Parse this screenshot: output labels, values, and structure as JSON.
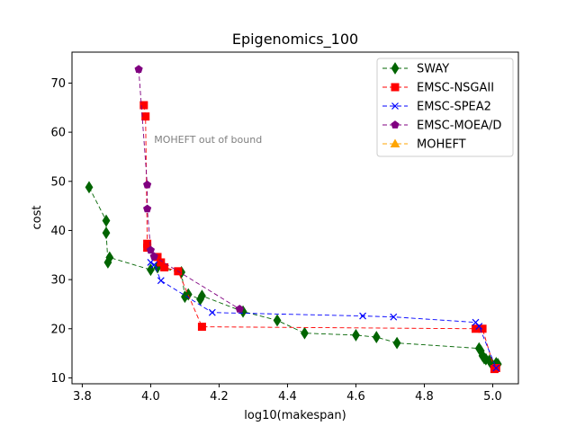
{
  "chart_data": {
    "type": "line",
    "title": "Epigenomics_100",
    "xlabel": "log10(makespan)",
    "ylabel": "cost",
    "xlim": [
      3.77,
      5.075
    ],
    "ylim": [
      8.8,
      76.3
    ],
    "xticks": [
      3.8,
      4.0,
      4.2,
      4.4,
      4.6,
      4.8,
      5.0
    ],
    "xtick_labels": [
      "3.8",
      "4.0",
      "4.2",
      "4.4",
      "4.6",
      "4.8",
      "5.0"
    ],
    "yticks": [
      10,
      20,
      30,
      40,
      50,
      60,
      70
    ],
    "ytick_labels": [
      "10",
      "20",
      "30",
      "40",
      "50",
      "60",
      "70"
    ],
    "grid": false,
    "legend_position": "top-right",
    "annotation": {
      "text": "MOHEFT out of bound",
      "x": 4.01,
      "y": 58.6
    },
    "series": [
      {
        "name": "SWAY",
        "color": "#006400",
        "marker": "diamond",
        "points": [
          [
            3.82,
            48.8
          ],
          [
            3.87,
            42.0
          ],
          [
            3.87,
            39.5
          ],
          [
            3.875,
            33.5
          ],
          [
            3.88,
            34.5
          ],
          [
            4.0,
            32.0
          ],
          [
            4.02,
            32.5
          ],
          [
            4.09,
            31.5
          ],
          [
            4.1,
            26.5
          ],
          [
            4.11,
            27.0
          ],
          [
            4.145,
            26.0
          ],
          [
            4.15,
            26.7
          ],
          [
            4.27,
            23.5
          ],
          [
            4.37,
            21.7
          ],
          [
            4.45,
            19.1
          ],
          [
            4.6,
            18.7
          ],
          [
            4.66,
            18.3
          ],
          [
            4.72,
            17.1
          ],
          [
            4.96,
            16.0
          ],
          [
            4.965,
            15.5
          ],
          [
            4.97,
            14.5
          ],
          [
            4.975,
            14.0
          ],
          [
            4.98,
            13.8
          ],
          [
            4.99,
            13.5
          ],
          [
            4.995,
            13.0
          ],
          [
            5.0,
            12.5
          ],
          [
            5.01,
            13.0
          ],
          [
            5.015,
            12.8
          ]
        ]
      },
      {
        "name": "EMSC-NSGAII",
        "color": "#ff0000",
        "marker": "square",
        "points": [
          [
            3.98,
            65.5
          ],
          [
            3.985,
            63.2
          ],
          [
            3.99,
            37.3
          ],
          [
            3.99,
            36.5
          ],
          [
            4.02,
            34.6
          ],
          [
            4.03,
            33.5
          ],
          [
            4.04,
            32.5
          ],
          [
            4.08,
            31.7
          ],
          [
            4.15,
            20.4
          ],
          [
            4.95,
            20.0
          ],
          [
            4.97,
            20.0
          ],
          [
            5.005,
            11.8
          ],
          [
            5.01,
            12.0
          ]
        ]
      },
      {
        "name": "EMSC-SPEA2",
        "color": "#0000ff",
        "marker": "x",
        "points": [
          [
            4.0,
            33.5
          ],
          [
            4.01,
            33.0
          ],
          [
            4.03,
            29.8
          ],
          [
            4.18,
            23.3
          ],
          [
            4.62,
            22.6
          ],
          [
            4.71,
            22.4
          ],
          [
            4.95,
            21.3
          ],
          [
            4.96,
            20.5
          ],
          [
            5.01,
            12.0
          ]
        ]
      },
      {
        "name": "EMSC-MOEA/D",
        "color": "#800080",
        "marker": "pentagon",
        "points": [
          [
            3.965,
            72.8
          ],
          [
            3.99,
            49.3
          ],
          [
            3.99,
            44.4
          ],
          [
            4.0,
            36.0
          ],
          [
            4.01,
            34.7
          ],
          [
            4.26,
            24.0
          ]
        ]
      },
      {
        "name": "MOHEFT",
        "color": "#ffa500",
        "marker": "triangle",
        "points": []
      }
    ]
  }
}
